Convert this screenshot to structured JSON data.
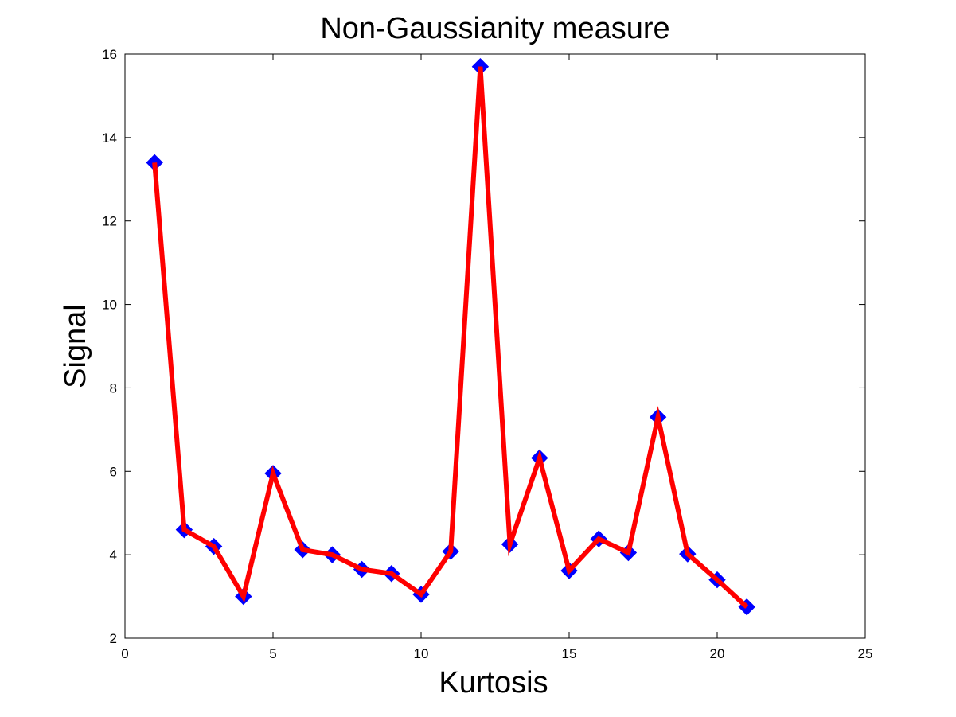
{
  "chart_data": {
    "type": "line",
    "title": "Non-Gaussianity measure",
    "xlabel": "Kurtosis",
    "ylabel": "Signal",
    "xlim": [
      0,
      25
    ],
    "ylim": [
      2,
      16
    ],
    "xticks": [
      0,
      5,
      10,
      15,
      20,
      25
    ],
    "yticks": [
      2,
      4,
      6,
      8,
      10,
      12,
      14,
      16
    ],
    "grid": false,
    "legend": "none",
    "series": [
      {
        "x": [
          1,
          2,
          3,
          4,
          5,
          6,
          7,
          8,
          9,
          10,
          11,
          12,
          13,
          14,
          15,
          16,
          17,
          18,
          19,
          20,
          21
        ],
        "values": [
          13.4,
          4.6,
          4.2,
          3.0,
          5.95,
          4.12,
          4.0,
          3.65,
          3.55,
          3.05,
          4.08,
          15.7,
          4.25,
          6.32,
          3.62,
          4.38,
          4.05,
          7.3,
          4.02,
          3.4,
          2.75
        ],
        "line_color": "#ff0000",
        "marker": "diamond",
        "marker_color": "#0000ff"
      }
    ]
  }
}
